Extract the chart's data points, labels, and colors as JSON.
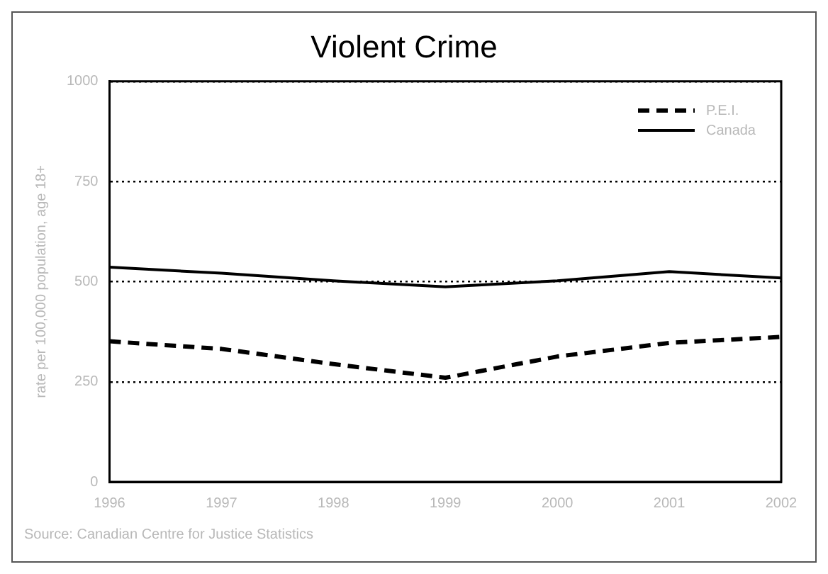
{
  "chart_data": {
    "type": "line",
    "title": "Violent Crime",
    "ylabel": "rate per 100,000 population, age 18+",
    "annotations": [
      "Source: Canadian Centre for Justice Statistics"
    ],
    "categories": [
      "1996",
      "1997",
      "1998",
      "1999",
      "2000",
      "2001",
      "2002"
    ],
    "series": [
      {
        "name": "P.E.I.",
        "color": "#000000",
        "line_style": "dashed",
        "values": [
          351,
          332,
          294,
          260,
          313,
          347,
          362
        ]
      },
      {
        "name": "Canada",
        "color": "#000000",
        "line_style": "solid",
        "values": [
          536,
          521,
          502,
          487,
          502,
          525,
          509
        ]
      }
    ],
    "ylim": [
      0,
      1000
    ],
    "yticks": [
      0,
      250,
      500,
      750,
      1000
    ],
    "grid": "y",
    "legend": "top right",
    "marker": "none"
  }
}
